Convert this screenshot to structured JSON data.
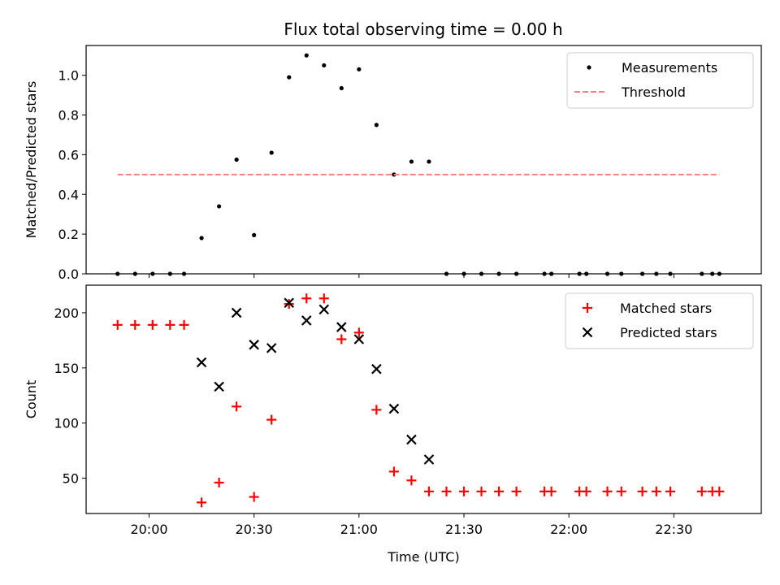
{
  "chart_data": [
    {
      "type": "scatter",
      "title": "Flux total observing time = 0.00 h",
      "xlabel": "",
      "ylabel": "Matched/Predicted stars",
      "ylim": [
        0,
        1.15
      ],
      "yticks": [
        "0.0",
        "0.2",
        "0.4",
        "0.6",
        "0.8",
        "1.0"
      ],
      "xlim_minutes": [
        1182,
        1375
      ],
      "xticks": [
        "20:00",
        "20:30",
        "21:00",
        "21:30",
        "22:00",
        "22:30"
      ],
      "show_xticklabels": false,
      "legend_position": "top-right",
      "series": [
        {
          "name": "Measurements",
          "kind": "scatter-dot",
          "color": "#000000",
          "x": [
            "19:51",
            "19:56",
            "20:01",
            "20:06",
            "20:10",
            "20:15",
            "20:20",
            "20:25",
            "20:30",
            "20:35",
            "20:40",
            "20:45",
            "20:50",
            "20:55",
            "21:00",
            "21:05",
            "21:10",
            "21:15",
            "21:20",
            "21:25",
            "21:30",
            "21:35",
            "21:40",
            "21:45",
            "21:53",
            "21:55",
            "22:03",
            "22:05",
            "22:11",
            "22:15",
            "22:21",
            "22:25",
            "22:29",
            "22:38",
            "22:41",
            "22:43"
          ],
          "y": [
            0,
            0,
            0,
            0,
            0,
            0.18,
            0.34,
            0.575,
            0.195,
            0.61,
            0.99,
            1.1,
            1.05,
            0.935,
            1.03,
            0.75,
            0.5,
            0.565,
            0.565,
            0,
            0,
            0,
            0,
            0,
            0,
            0,
            0,
            0,
            0,
            0,
            0,
            0,
            0,
            0,
            0,
            0
          ]
        },
        {
          "name": "Threshold",
          "kind": "dashed-line",
          "color": "#ff7f7f",
          "x": [
            "19:51",
            "22:43"
          ],
          "y": [
            0.5,
            0.5
          ]
        }
      ]
    },
    {
      "type": "scatter",
      "title": "",
      "xlabel": "Time (UTC)",
      "ylabel": "Count",
      "ylim": [
        18,
        225
      ],
      "yticks": [
        "50",
        "100",
        "150",
        "200"
      ],
      "xlim_minutes": [
        1182,
        1375
      ],
      "xticks": [
        "20:00",
        "20:30",
        "21:00",
        "21:30",
        "22:00",
        "22:30"
      ],
      "show_xticklabels": true,
      "legend_position": "top-right",
      "series": [
        {
          "name": "Matched stars",
          "kind": "plus",
          "color": "#ff0000",
          "x": [
            "19:51",
            "19:56",
            "20:01",
            "20:06",
            "20:10",
            "20:15",
            "20:20",
            "20:25",
            "20:30",
            "20:35",
            "20:40",
            "20:45",
            "20:50",
            "20:55",
            "21:00",
            "21:05",
            "21:10",
            "21:15",
            "21:20",
            "21:25",
            "21:30",
            "21:35",
            "21:40",
            "21:45",
            "21:53",
            "21:55",
            "22:03",
            "22:05",
            "22:11",
            "22:15",
            "22:21",
            "22:25",
            "22:29",
            "22:38",
            "22:41",
            "22:43"
          ],
          "y": [
            189,
            189,
            189,
            189,
            189,
            28,
            46,
            115,
            33,
            103,
            208,
            213,
            213,
            176,
            182,
            112,
            56,
            48,
            38,
            38,
            38,
            38,
            38,
            38,
            38,
            38,
            38,
            38,
            38,
            38,
            38,
            38,
            38,
            38,
            38,
            38
          ]
        },
        {
          "name": "Predicted stars",
          "kind": "x",
          "color": "#000000",
          "x": [
            "20:15",
            "20:20",
            "20:25",
            "20:30",
            "20:35",
            "20:40",
            "20:45",
            "20:50",
            "20:55",
            "21:00",
            "21:05",
            "21:10",
            "21:15",
            "21:20"
          ],
          "y": [
            155,
            133,
            200,
            171,
            168,
            209,
            193,
            203,
            187,
            176,
            149,
            113,
            85,
            67
          ]
        }
      ]
    }
  ]
}
